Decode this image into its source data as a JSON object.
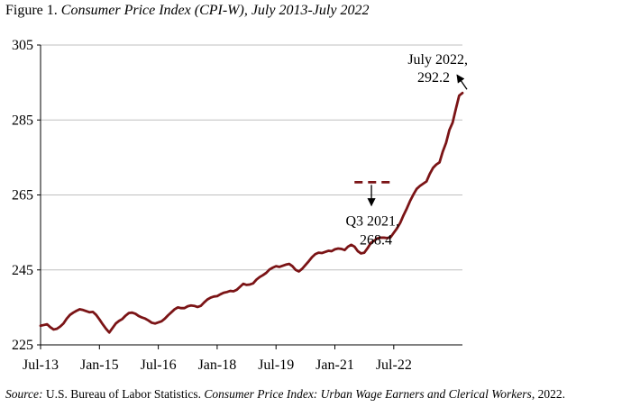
{
  "figure": {
    "label": "Figure 1.",
    "title": "Consumer Price Index (CPI-W), July 2013-July 2022"
  },
  "source": {
    "label": "Source:",
    "text_1": "U.S. Bureau of Labor Statistics.",
    "publication": "Consumer Price Index: Urban Wage Earners and Clerical Workers",
    "text_2": ", 2022."
  },
  "colors": {
    "series": "#7b1416",
    "grid": "#bfbfbf",
    "axis": "#000000"
  },
  "chart_data": {
    "type": "line",
    "title": "",
    "xlabel": "",
    "ylabel": "",
    "ylim": [
      225,
      305
    ],
    "yticks": [
      225,
      245,
      265,
      285,
      305
    ],
    "xticks": [
      "Jul-13",
      "Jan-15",
      "Jul-16",
      "Jan-18",
      "Jul-19",
      "Jan-21",
      "Jul-22"
    ],
    "grid": "horizontal",
    "x_start": "Jul-13",
    "x_end": "Jul-22",
    "series": [
      {
        "name": "",
        "values": [
          230.1,
          230.3,
          230.5,
          229.7,
          229.1,
          229.3,
          229.9,
          230.7,
          232.0,
          233.0,
          233.6,
          234.1,
          234.5,
          234.3,
          234.0,
          233.7,
          233.8,
          233.0,
          231.8,
          230.5,
          229.3,
          228.3,
          229.5,
          230.7,
          231.4,
          231.9,
          232.8,
          233.5,
          233.6,
          233.3,
          232.7,
          232.3,
          232.0,
          231.5,
          230.9,
          230.7,
          231.0,
          231.3,
          232.0,
          232.9,
          233.7,
          234.5,
          235.0,
          234.8,
          234.8,
          235.3,
          235.5,
          235.4,
          235.1,
          235.4,
          236.3,
          237.1,
          237.6,
          237.9,
          238.0,
          238.5,
          238.9,
          239.1,
          239.4,
          239.3,
          239.7,
          240.5,
          241.3,
          241.0,
          241.1,
          241.4,
          242.4,
          243.1,
          243.6,
          244.2,
          245.1,
          245.6,
          246.0,
          245.8,
          246.1,
          246.4,
          246.6,
          246.0,
          245.0,
          244.6,
          245.3,
          246.3,
          247.3,
          248.4,
          249.2,
          249.6,
          249.5,
          249.8,
          250.1,
          250.0,
          250.5,
          250.7,
          250.6,
          250.3,
          251.2,
          251.7,
          251.2,
          250.0,
          249.4,
          249.6,
          250.8,
          252.2,
          252.8,
          253.4,
          253.6,
          253.6,
          253.5,
          253.7,
          254.9,
          256.1,
          257.6,
          259.6,
          261.4,
          263.4,
          265.1,
          266.6,
          267.4,
          268.0,
          268.6,
          270.6,
          272.2,
          273.1,
          273.7,
          276.6,
          278.9,
          282.3,
          284.3,
          288.0,
          291.5,
          292.2
        ]
      }
    ],
    "annotations": [
      {
        "label_line1": "July 2022,",
        "label_line2": "292.2",
        "x": "Jul-22",
        "y": 292.2
      },
      {
        "label_line1": "Q3 2021,",
        "label_line2": "268.4",
        "x_from": "Jul-21",
        "x_to": "Jul-22",
        "y": 268.4,
        "style": "dashed"
      }
    ]
  }
}
